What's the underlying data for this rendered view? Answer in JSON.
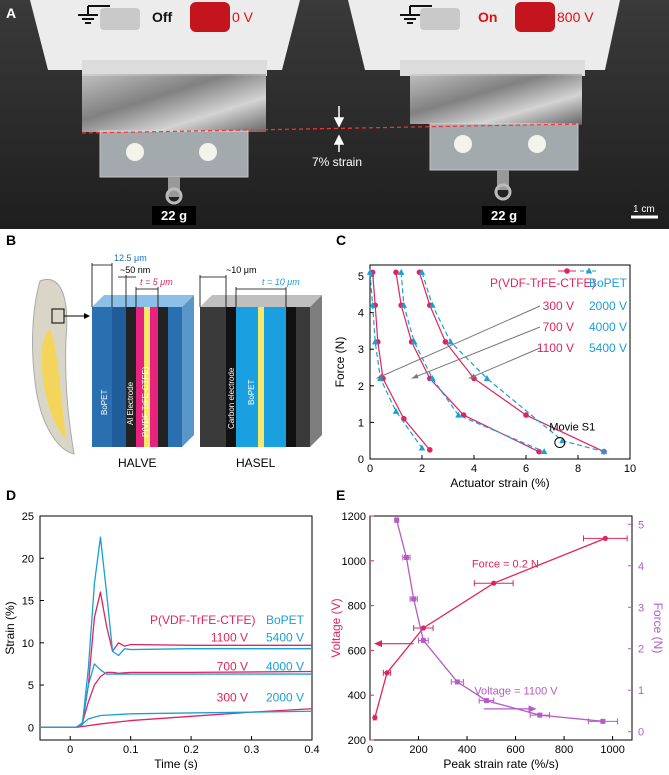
{
  "panel_letters": {
    "a": "A",
    "b": "B",
    "c": "C",
    "d": "D",
    "e": "E"
  },
  "panelA": {
    "left_state": "Off",
    "left_voltage": "0 V",
    "right_state": "On",
    "right_voltage": "800 V",
    "strain_label": "7% strain",
    "weight_left": "22 g",
    "weight_right": "22 g",
    "scale_bar": "1 cm"
  },
  "panelB": {
    "halve_title": "HALVE",
    "hasel_title": "HASEL",
    "dims": {
      "a": "12.5 μm",
      "b": "~50 nm",
      "c": "t = 5 μm",
      "d": "~10 μm",
      "e": "t = 10 μm"
    },
    "halve_layers": {
      "bopet": "BoPET",
      "electrode": "Al Electrode",
      "pvdf": "P(VDF-TrFE-CTFE)"
    },
    "hasel_layers": {
      "electrode": "Carbon electrode",
      "bopet": "BoPET"
    }
  },
  "chart_data": [
    {
      "panel": "C",
      "type": "line",
      "xlabel": "Actuator strain (%)",
      "ylabel": "Force (N)",
      "xlim": [
        0,
        10
      ],
      "ylim": [
        0,
        5.3
      ],
      "xticks": [
        0,
        2,
        4,
        6,
        8,
        10
      ],
      "yticks": [
        0,
        1,
        2,
        3,
        4,
        5
      ],
      "legend": {
        "pvdf": "P(VDF-TrFE-CTFE)",
        "bopet": "BoPET"
      },
      "voltage_labels": [
        {
          "pvdf": "300 V",
          "bopet": "2000 V"
        },
        {
          "pvdf": "700 V",
          "bopet": "4000 V"
        },
        {
          "pvdf": "1100 V",
          "bopet": "5400 V"
        }
      ],
      "annotation": "Movie S1",
      "series": [
        {
          "material": "pvdf",
          "voltage": "300 V",
          "x": [
            0.1,
            0.2,
            0.3,
            0.5,
            1.3,
            2.3
          ],
          "y": [
            5.1,
            4.2,
            3.2,
            2.2,
            1.1,
            0.25
          ]
        },
        {
          "material": "pvdf",
          "voltage": "700 V",
          "x": [
            1.0,
            1.2,
            1.6,
            2.3,
            3.6,
            6.5
          ],
          "y": [
            5.1,
            4.2,
            3.2,
            2.2,
            1.2,
            0.2
          ]
        },
        {
          "material": "pvdf",
          "voltage": "1100 V",
          "x": [
            1.9,
            2.3,
            2.9,
            4.0,
            6.0,
            9.0
          ],
          "y": [
            5.1,
            4.2,
            3.2,
            2.2,
            1.2,
            0.2
          ]
        },
        {
          "material": "bopet",
          "voltage": "2000 V",
          "x": [
            0.0,
            0.1,
            0.2,
            0.4,
            1.0,
            2.0
          ],
          "y": [
            5.1,
            4.2,
            3.2,
            2.2,
            1.3,
            0.3
          ]
        },
        {
          "material": "bopet",
          "voltage": "4000 V",
          "x": [
            1.2,
            1.3,
            1.7,
            2.4,
            3.4,
            6.7
          ],
          "y": [
            5.1,
            4.2,
            3.2,
            2.2,
            1.2,
            0.2
          ]
        },
        {
          "material": "bopet",
          "voltage": "5400 V",
          "x": [
            2.0,
            2.4,
            3.1,
            4.5,
            7.4,
            9.0
          ],
          "y": [
            5.1,
            4.2,
            3.2,
            2.2,
            0.5,
            0.2
          ]
        }
      ]
    },
    {
      "panel": "D",
      "type": "line",
      "xlabel": "Time (s)",
      "ylabel": "Strain (%)",
      "xlim": [
        -0.05,
        0.4
      ],
      "ylim": [
        -1.5,
        25
      ],
      "xticks": [
        0,
        0.1,
        0.2,
        0.3,
        0.4
      ],
      "xtick_labels": [
        "0",
        "0.1",
        "0.2",
        "0.3",
        "0.4"
      ],
      "yticks": [
        0,
        5,
        10,
        15,
        20,
        25
      ],
      "legend": {
        "pvdf": "P(VDF-TrFE-CTFE)",
        "bopet": "BoPET"
      },
      "voltage_labels": [
        {
          "pvdf": "1100 V",
          "bopet": "5400 V"
        },
        {
          "pvdf": "700 V",
          "bopet": "4000 V"
        },
        {
          "pvdf": "300 V",
          "bopet": "2000 V"
        }
      ],
      "series": [
        {
          "material": "pvdf",
          "voltage": "1100 V",
          "x": [
            -0.05,
            0.01,
            0.02,
            0.03,
            0.04,
            0.05,
            0.06,
            0.07,
            0.08,
            0.09,
            0.1,
            0.2,
            0.4
          ],
          "y": [
            0,
            0,
            0.3,
            5,
            13,
            16,
            12,
            9,
            10,
            9.6,
            9.8,
            9.7,
            9.7
          ]
        },
        {
          "material": "bopet",
          "voltage": "5400 V",
          "x": [
            -0.05,
            0.01,
            0.02,
            0.03,
            0.04,
            0.05,
            0.06,
            0.07,
            0.08,
            0.09,
            0.1,
            0.2,
            0.4
          ],
          "y": [
            0,
            0,
            0.3,
            7,
            17,
            22.5,
            16,
            9,
            8.5,
            9.3,
            9.2,
            9.3,
            9.3
          ]
        },
        {
          "material": "pvdf",
          "voltage": "700 V",
          "x": [
            -0.05,
            0.01,
            0.02,
            0.03,
            0.04,
            0.05,
            0.06,
            0.07,
            0.08,
            0.1,
            0.2,
            0.4
          ],
          "y": [
            0,
            0,
            0.5,
            3,
            5,
            6,
            6.5,
            6.5,
            6.4,
            6.5,
            6.5,
            6.6
          ]
        },
        {
          "material": "bopet",
          "voltage": "4000 V",
          "x": [
            -0.05,
            0.01,
            0.02,
            0.03,
            0.04,
            0.05,
            0.06,
            0.07,
            0.1,
            0.2,
            0.4
          ],
          "y": [
            0,
            0,
            0.5,
            5,
            7.5,
            6.8,
            6.3,
            6.3,
            6.3,
            6.3,
            6.3
          ]
        },
        {
          "material": "pvdf",
          "voltage": "300 V",
          "x": [
            -0.05,
            0.01,
            0.02,
            0.05,
            0.1,
            0.2,
            0.3,
            0.4
          ],
          "y": [
            0,
            0,
            0.1,
            0.4,
            0.8,
            1.3,
            1.8,
            2.2
          ]
        },
        {
          "material": "bopet",
          "voltage": "2000 V",
          "x": [
            -0.05,
            0.01,
            0.02,
            0.03,
            0.05,
            0.1,
            0.2,
            0.3,
            0.4
          ],
          "y": [
            0,
            0,
            0.4,
            1,
            1.4,
            1.6,
            1.7,
            1.8,
            1.9
          ]
        }
      ]
    },
    {
      "panel": "E",
      "type": "line",
      "xlabel": "Peak strain rate (%/s)",
      "ylabel": "Voltage (V)",
      "ylabel_right": "Force (N)",
      "xlim": [
        0,
        1080
      ],
      "ylim": [
        200,
        1200
      ],
      "ylim_right": [
        -0.2,
        5.2
      ],
      "xticks": [
        0,
        200,
        400,
        600,
        800,
        1000
      ],
      "yticks": [
        200,
        400,
        600,
        800,
        1000,
        1200
      ],
      "yticks_right": [
        0,
        1,
        2,
        3,
        4,
        5
      ],
      "series": [
        {
          "name": "Force = 0.2 N",
          "axis": "left",
          "x": [
            20,
            70,
            220,
            510,
            970
          ],
          "y": [
            300,
            500,
            700,
            900,
            1100
          ],
          "xerr": [
            5,
            15,
            40,
            80,
            90
          ]
        },
        {
          "name": "Voltage = 1100 V",
          "axis": "right",
          "x": [
            110,
            150,
            180,
            220,
            360,
            480,
            700,
            960
          ],
          "y": [
            5.1,
            4.2,
            3.2,
            2.2,
            1.2,
            0.75,
            0.4,
            0.25
          ],
          "xerr": [
            5,
            15,
            15,
            20,
            25,
            30,
            40,
            60
          ]
        }
      ]
    }
  ],
  "colors": {
    "pvdf": "#e0245e",
    "bopet": "#1a9fd6",
    "force": "#e0245e",
    "voltage": "#b45bc6"
  }
}
